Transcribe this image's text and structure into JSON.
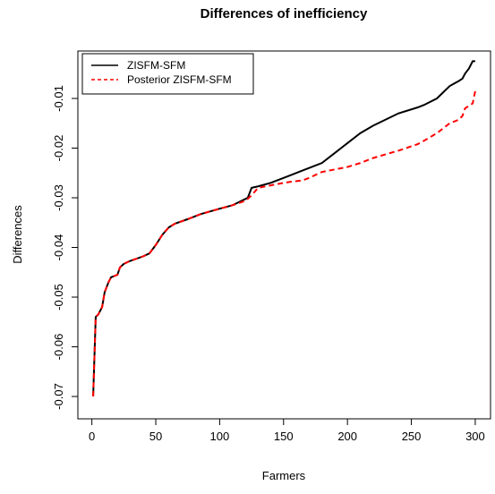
{
  "chart_data": {
    "type": "line",
    "title": "Differences of inefficiency",
    "x_label": "Farmers",
    "y_label": "Differences",
    "x": [
      1,
      2,
      3,
      5,
      8,
      10,
      13,
      15,
      20,
      22,
      25,
      30,
      40,
      45,
      50,
      55,
      60,
      65,
      75,
      85,
      100,
      110,
      118,
      122,
      125,
      130,
      140,
      150,
      155,
      165,
      170,
      180,
      190,
      200,
      210,
      220,
      240,
      255,
      260,
      270,
      280,
      287,
      290,
      292,
      295,
      298,
      300
    ],
    "series": [
      {
        "name": "ZISFM-SFM",
        "color": "#000000",
        "dash": false,
        "values": [
          -0.07,
          -0.062,
          -0.054,
          -0.0535,
          -0.052,
          -0.049,
          -0.047,
          -0.046,
          -0.0455,
          -0.044,
          -0.0433,
          -0.0427,
          -0.0418,
          -0.0412,
          -0.0395,
          -0.0375,
          -0.036,
          -0.0352,
          -0.0343,
          -0.0333,
          -0.0322,
          -0.0315,
          -0.0305,
          -0.03,
          -0.028,
          -0.0277,
          -0.027,
          -0.026,
          -0.0255,
          -0.0245,
          -0.024,
          -0.023,
          -0.021,
          -0.019,
          -0.017,
          -0.0155,
          -0.013,
          -0.0118,
          -0.0113,
          -0.01,
          -0.0075,
          -0.0065,
          -0.006,
          -0.005,
          -0.004,
          -0.0025,
          -0.0025
        ]
      },
      {
        "name": "Posterior ZISFM-SFM",
        "color": "#ff0000",
        "dash": true,
        "values": [
          -0.07,
          -0.062,
          -0.054,
          -0.0535,
          -0.052,
          -0.049,
          -0.047,
          -0.046,
          -0.0455,
          -0.044,
          -0.0433,
          -0.0427,
          -0.0418,
          -0.0412,
          -0.0395,
          -0.0375,
          -0.036,
          -0.0352,
          -0.0343,
          -0.0333,
          -0.0322,
          -0.0315,
          -0.0308,
          -0.0302,
          -0.0295,
          -0.028,
          -0.0275,
          -0.027,
          -0.0268,
          -0.0265,
          -0.026,
          -0.0248,
          -0.0243,
          -0.0238,
          -0.023,
          -0.022,
          -0.0205,
          -0.0192,
          -0.0185,
          -0.017,
          -0.015,
          -0.0143,
          -0.0135,
          -0.012,
          -0.0115,
          -0.011,
          -0.0085
        ]
      }
    ],
    "xlim": [
      -10.96,
      311.96
    ],
    "ylim": [
      -0.0745,
      -0.00045
    ],
    "xticks": [
      0,
      50,
      100,
      150,
      200,
      250,
      300
    ],
    "yticks": [
      -0.07,
      -0.06,
      -0.05,
      -0.04,
      -0.03,
      -0.02,
      -0.01
    ],
    "legend": "top-left",
    "grid": false
  }
}
